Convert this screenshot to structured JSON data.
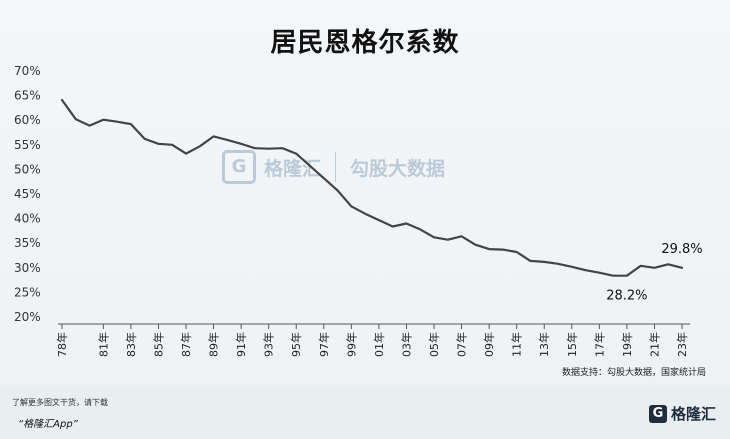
{
  "title": "居民恩格尔系数",
  "source": "数据支持：勾股大数据，国家统计局",
  "footer": {
    "note": "了解更多图文干货，请下载",
    "app": "“格隆汇App”",
    "brand": "格隆汇",
    "brand_icon": "G"
  },
  "watermark": {
    "brand": "格隆汇",
    "text": "勾股大数据",
    "icon": "G"
  },
  "colors": {
    "line": "#444444",
    "grid": "#d8dde2"
  },
  "chart_data": {
    "type": "line",
    "title": "居民恩格尔系数",
    "xlabel": "",
    "ylabel": "",
    "ylim": [
      20,
      70
    ],
    "y_ticks": [
      "20%",
      "25%",
      "30%",
      "35%",
      "40%",
      "45%",
      "50%",
      "55%",
      "60%",
      "65%",
      "70%"
    ],
    "x_ticks": [
      "78年",
      "81年",
      "83年",
      "85年",
      "87年",
      "89年",
      "91年",
      "93年",
      "95年",
      "97年",
      "99年",
      "01年",
      "03年",
      "05年",
      "07年",
      "09年",
      "11年",
      "13年",
      "15年",
      "17年",
      "19年",
      "21年",
      "23年"
    ],
    "x": [
      1978,
      1979,
      1980,
      1981,
      1982,
      1983,
      1984,
      1985,
      1986,
      1987,
      1988,
      1989,
      1990,
      1991,
      1992,
      1993,
      1994,
      1995,
      1996,
      1997,
      1998,
      1999,
      2000,
      2001,
      2002,
      2003,
      2004,
      2005,
      2006,
      2007,
      2008,
      2009,
      2010,
      2011,
      2012,
      2013,
      2014,
      2015,
      2016,
      2017,
      2018,
      2019,
      2020,
      2021,
      2022,
      2023
    ],
    "series": [
      {
        "values": [
          63.9,
          60.0,
          58.7,
          59.9,
          59.5,
          59.0,
          56.0,
          55.0,
          54.8,
          53.0,
          54.5,
          56.5,
          55.8,
          55.0,
          54.1,
          54.0,
          54.1,
          53.0,
          50.5,
          48.0,
          45.5,
          42.3,
          40.8,
          39.5,
          38.2,
          38.8,
          37.6,
          36.0,
          35.5,
          36.2,
          34.5,
          33.6,
          33.5,
          33.0,
          31.2,
          31.0,
          30.6,
          30.0,
          29.3,
          28.8,
          28.2,
          28.2,
          30.2,
          29.8,
          30.5,
          29.8
        ]
      }
    ],
    "annotations": [
      {
        "x": 2019,
        "y": 28.2,
        "text": "28.2%"
      },
      {
        "x": 2023,
        "y": 29.8,
        "text": "29.8%"
      }
    ],
    "grid": false
  }
}
